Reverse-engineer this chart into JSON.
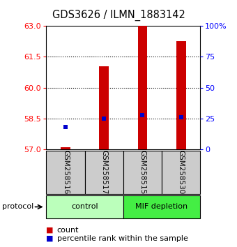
{
  "title": "GDS3626 / ILMN_1883142",
  "samples": [
    "GSM258516",
    "GSM258517",
    "GSM258515",
    "GSM258530"
  ],
  "groups": [
    {
      "label": "control",
      "color": "#aaffaa",
      "samples": [
        0,
        1
      ]
    },
    {
      "label": "MIF depletion",
      "color": "#55ee55",
      "samples": [
        2,
        3
      ]
    }
  ],
  "count_values": [
    57.12,
    61.05,
    63.0,
    62.25
  ],
  "percentile_values": [
    58.08,
    58.5,
    58.65,
    58.58
  ],
  "ylim_left": [
    57,
    63
  ],
  "ylim_right": [
    0,
    100
  ],
  "yticks_left": [
    57,
    58.5,
    60,
    61.5,
    63
  ],
  "yticks_right": [
    0,
    25,
    50,
    75,
    100
  ],
  "bar_color": "#cc0000",
  "square_color": "#0000cc",
  "bar_width": 0.25,
  "background_color": "#ffffff",
  "title_fontsize": 10.5,
  "tick_fontsize": 8,
  "sample_box_color": "#cccccc",
  "control_color": "#bbffbb",
  "mif_color": "#44ee44"
}
